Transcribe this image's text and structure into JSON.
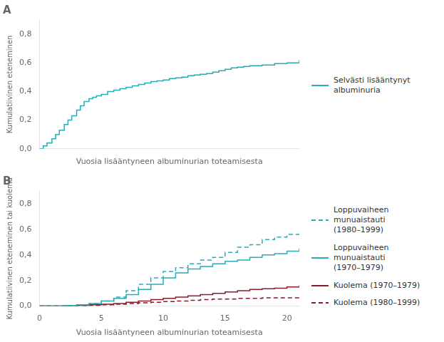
{
  "chart_data": [
    {
      "type": "step",
      "title": "A",
      "xlabel": "Vuosia lisääntyneen albuminurian toteamisesta",
      "ylabel": "Kumulatiivinen eteneminen",
      "x": [
        0,
        0.3,
        0.6,
        1.0,
        1.3,
        1.6,
        2.0,
        2.3,
        2.6,
        3.0,
        3.3,
        3.6,
        4.0,
        4.3,
        4.6,
        5.0,
        5.5,
        6.0,
        6.5,
        7.0,
        7.5,
        8.0,
        8.5,
        9.0,
        9.5,
        10.0,
        10.5,
        11.0,
        11.5,
        12.0,
        12.5,
        13.0,
        13.5,
        14.0,
        14.5,
        15.0,
        15.5,
        16.0,
        16.5,
        17.0,
        18.0,
        19.0,
        20.0,
        21.0
      ],
      "series": [
        {
          "name": "Selvästi lisääntynyt\nalbuminuria",
          "color": "#2aabb5",
          "line_style": "solid",
          "values": [
            0.0,
            0.02,
            0.04,
            0.07,
            0.1,
            0.13,
            0.17,
            0.2,
            0.23,
            0.27,
            0.3,
            0.33,
            0.35,
            0.36,
            0.37,
            0.38,
            0.4,
            0.41,
            0.42,
            0.43,
            0.44,
            0.45,
            0.46,
            0.47,
            0.475,
            0.48,
            0.49,
            0.495,
            0.5,
            0.51,
            0.515,
            0.52,
            0.525,
            0.535,
            0.545,
            0.555,
            0.565,
            0.57,
            0.575,
            0.58,
            0.585,
            0.595,
            0.6,
            0.62
          ]
        }
      ],
      "xlim": [
        0,
        21
      ],
      "ylim": [
        0.0,
        0.9
      ],
      "xticks": [
        0,
        5,
        10,
        15,
        20
      ],
      "yticks": [
        {
          "value": 0.0,
          "label": "0,0"
        },
        {
          "value": 0.2,
          "label": "0,2"
        },
        {
          "value": 0.4,
          "label": "0,4"
        },
        {
          "value": 0.6,
          "label": "0,6"
        },
        {
          "value": 0.8,
          "label": "0,8"
        }
      ],
      "grid": false,
      "legend": "right",
      "tick_labels": "y"
    },
    {
      "type": "step",
      "title": "B",
      "xlabel": "Vuosia lisääntyneen albuminurian toteamisesta",
      "ylabel": "Kumulatiivinen eteneminen tai kuolema",
      "x": [
        0,
        1,
        2,
        3,
        4,
        5,
        6,
        7,
        8,
        9,
        10,
        11,
        12,
        13,
        14,
        15,
        16,
        17,
        18,
        19,
        20,
        21
      ],
      "series": [
        {
          "name": "Loppuvaiheen munuaistauti\n(1980–1999)",
          "color": "#2aabb5",
          "line_style": "dashed",
          "values": [
            0.0,
            0.0,
            0.005,
            0.01,
            0.02,
            0.04,
            0.07,
            0.12,
            0.17,
            0.22,
            0.27,
            0.3,
            0.33,
            0.36,
            0.38,
            0.42,
            0.46,
            0.48,
            0.52,
            0.54,
            0.56,
            0.58
          ]
        },
        {
          "name": "Loppuvaiheen munuaistauti\n(1970–1979)",
          "color": "#2aabb5",
          "line_style": "solid",
          "values": [
            0.0,
            0.0,
            0.005,
            0.01,
            0.02,
            0.04,
            0.06,
            0.09,
            0.13,
            0.17,
            0.22,
            0.26,
            0.29,
            0.31,
            0.33,
            0.35,
            0.36,
            0.38,
            0.4,
            0.41,
            0.43,
            0.45
          ]
        },
        {
          "name": "Kuolema (1970–1979)",
          "color": "#8b1a2a",
          "line_style": "solid",
          "values": [
            0.0,
            0.0,
            0.0,
            0.005,
            0.01,
            0.015,
            0.02,
            0.03,
            0.04,
            0.05,
            0.06,
            0.07,
            0.08,
            0.09,
            0.1,
            0.11,
            0.12,
            0.13,
            0.135,
            0.14,
            0.15,
            0.16
          ]
        },
        {
          "name": "Kuolema (1980–1999)",
          "color": "#8b1a2a",
          "line_style": "dashed",
          "values": [
            0.0,
            0.0,
            0.0,
            0.0,
            0.005,
            0.01,
            0.015,
            0.02,
            0.025,
            0.03,
            0.035,
            0.04,
            0.045,
            0.05,
            0.055,
            0.055,
            0.06,
            0.06,
            0.065,
            0.065,
            0.065,
            0.07
          ]
        }
      ],
      "xlim": [
        0,
        21
      ],
      "ylim": [
        0.0,
        0.9
      ],
      "xticks": [
        0,
        5,
        10,
        15,
        20
      ],
      "yticks": [
        {
          "value": 0.0,
          "label": "0,0"
        },
        {
          "value": 0.2,
          "label": "0,2"
        },
        {
          "value": 0.4,
          "label": "0,4"
        },
        {
          "value": 0.6,
          "label": "0,6"
        },
        {
          "value": 0.8,
          "label": "0,8"
        }
      ],
      "grid": false,
      "legend": "right"
    }
  ]
}
